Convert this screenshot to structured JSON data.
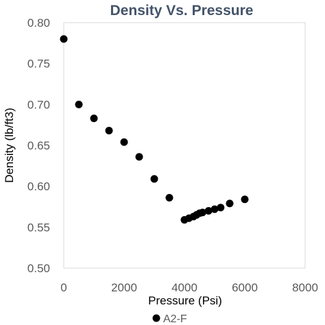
{
  "chart_data": {
    "type": "scatter",
    "title": "Density Vs. Pressure",
    "xlabel": "Pressure (Psi)",
    "ylabel": "Density (lb/ft3)",
    "xlim": [
      0,
      8000
    ],
    "ylim": [
      0.5,
      0.8
    ],
    "xticks": [
      "0",
      "2000",
      "4000",
      "6000",
      "8000"
    ],
    "yticks": [
      "0.50",
      "0.55",
      "0.60",
      "0.65",
      "0.70",
      "0.75",
      "0.80"
    ],
    "grid": false,
    "legend_position": "bottom",
    "series": [
      {
        "name": "A2-F",
        "color": "#000000",
        "x": [
          0,
          500,
          1000,
          1500,
          2000,
          2500,
          3000,
          3500,
          4000,
          4150,
          4300,
          4400,
          4500,
          4600,
          4800,
          5000,
          5200,
          5500,
          6000
        ],
        "y": [
          0.78,
          0.7,
          0.683,
          0.668,
          0.654,
          0.636,
          0.609,
          0.586,
          0.559,
          0.561,
          0.563,
          0.565,
          0.567,
          0.568,
          0.57,
          0.572,
          0.574,
          0.579,
          0.584
        ]
      }
    ]
  }
}
